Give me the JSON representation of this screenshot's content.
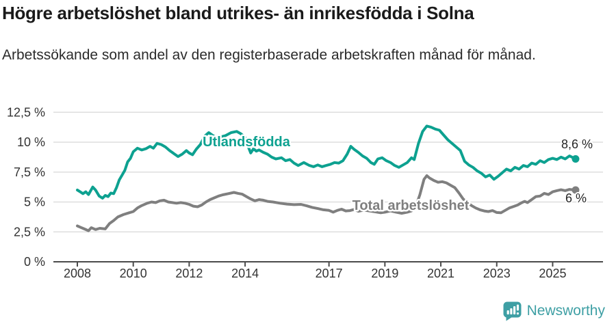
{
  "header": {
    "title": "Högre arbetslöshet bland utrikes- än inrikesfödda i Solna",
    "subtitle": "Arbetssökande som andel av den registerbaserade arbetskraften månad för månad."
  },
  "footer": {
    "brand": "Newsworthy",
    "logo_icon": "bar-chart-speech-bubble-icon"
  },
  "colors": {
    "teal_line": "#0da190",
    "gray_line": "#7f7f7f",
    "title_text": "#1a1a1a",
    "subtitle_text": "#2b2b2b",
    "axis_text": "#333333",
    "value_label_text": "#262626",
    "gridline": "#dedede",
    "axis_line": "#4a4a4a",
    "brand_teal": "#3e9fa4"
  },
  "chart_data": {
    "type": "line",
    "title": "Högre arbetslöshet bland utrikes- än inrikesfödda i Solna",
    "subtitle": "Arbetssökande som andel av den registerbaserade arbetskraften månad för månad.",
    "grid": "horizontal",
    "legend_position": "inline-labels",
    "x_axis": {
      "ticks": [
        2008,
        2010,
        2012,
        2014,
        2017,
        2019,
        2021,
        2023,
        2025
      ]
    },
    "y_axis": {
      "range": [
        0,
        12.5
      ],
      "ticks": [
        {
          "v": 0,
          "label": "0 %"
        },
        {
          "v": 2.5,
          "label": "2,5 %"
        },
        {
          "v": 5,
          "label": "5 %"
        },
        {
          "v": 7.5,
          "label": "7,5 %"
        },
        {
          "v": 10,
          "label": "10 %"
        },
        {
          "v": 12.5,
          "label": "12,5 %"
        }
      ]
    },
    "series": [
      {
        "name": "Utlandsfödda",
        "color": "#0da190",
        "end_label": "8,6 %",
        "points": [
          [
            2008.0,
            6.0
          ],
          [
            2008.1,
            5.85
          ],
          [
            2008.2,
            5.7
          ],
          [
            2008.3,
            5.85
          ],
          [
            2008.4,
            5.62
          ],
          [
            2008.55,
            6.25
          ],
          [
            2008.65,
            6.0
          ],
          [
            2008.78,
            5.5
          ],
          [
            2008.9,
            5.32
          ],
          [
            2009.0,
            5.55
          ],
          [
            2009.1,
            5.45
          ],
          [
            2009.2,
            5.75
          ],
          [
            2009.3,
            5.7
          ],
          [
            2009.4,
            6.2
          ],
          [
            2009.5,
            6.85
          ],
          [
            2009.6,
            7.25
          ],
          [
            2009.7,
            7.65
          ],
          [
            2009.8,
            8.35
          ],
          [
            2009.9,
            8.65
          ],
          [
            2010.0,
            9.2
          ],
          [
            2010.15,
            9.5
          ],
          [
            2010.3,
            9.35
          ],
          [
            2010.45,
            9.45
          ],
          [
            2010.6,
            9.65
          ],
          [
            2010.72,
            9.5
          ],
          [
            2010.85,
            9.9
          ],
          [
            2011.0,
            9.8
          ],
          [
            2011.15,
            9.6
          ],
          [
            2011.3,
            9.3
          ],
          [
            2011.45,
            9.05
          ],
          [
            2011.6,
            8.8
          ],
          [
            2011.75,
            9.0
          ],
          [
            2011.9,
            9.3
          ],
          [
            2012.0,
            9.1
          ],
          [
            2012.12,
            8.95
          ],
          [
            2012.25,
            9.4
          ],
          [
            2012.4,
            9.8
          ],
          [
            2012.55,
            10.5
          ],
          [
            2012.7,
            10.8
          ],
          [
            2012.85,
            10.55
          ],
          [
            2013.0,
            10.35
          ],
          [
            2013.15,
            10.45
          ],
          [
            2013.3,
            10.55
          ],
          [
            2013.5,
            10.8
          ],
          [
            2013.7,
            10.9
          ],
          [
            2013.85,
            10.7
          ],
          [
            2014.0,
            10.4
          ],
          [
            2014.1,
            9.7
          ],
          [
            2014.2,
            9.1
          ],
          [
            2014.3,
            9.45
          ],
          [
            2014.4,
            9.25
          ],
          [
            2014.5,
            9.35
          ],
          [
            2014.65,
            9.15
          ],
          [
            2014.8,
            9.0
          ],
          [
            2014.95,
            8.75
          ],
          [
            2015.1,
            8.6
          ],
          [
            2015.3,
            8.7
          ],
          [
            2015.45,
            8.45
          ],
          [
            2015.6,
            8.55
          ],
          [
            2015.75,
            8.25
          ],
          [
            2015.9,
            8.05
          ],
          [
            2016.1,
            8.3
          ],
          [
            2016.3,
            8.05
          ],
          [
            2016.45,
            7.95
          ],
          [
            2016.6,
            8.1
          ],
          [
            2016.75,
            7.95
          ],
          [
            2016.9,
            8.05
          ],
          [
            2017.05,
            8.15
          ],
          [
            2017.2,
            8.3
          ],
          [
            2017.35,
            8.25
          ],
          [
            2017.5,
            8.45
          ],
          [
            2017.65,
            9.0
          ],
          [
            2017.78,
            9.65
          ],
          [
            2017.9,
            9.4
          ],
          [
            2018.05,
            9.15
          ],
          [
            2018.2,
            8.85
          ],
          [
            2018.35,
            8.65
          ],
          [
            2018.5,
            8.3
          ],
          [
            2018.62,
            8.15
          ],
          [
            2018.75,
            8.6
          ],
          [
            2018.9,
            8.7
          ],
          [
            2019.05,
            8.45
          ],
          [
            2019.2,
            8.3
          ],
          [
            2019.35,
            8.05
          ],
          [
            2019.5,
            7.9
          ],
          [
            2019.65,
            8.1
          ],
          [
            2019.8,
            8.3
          ],
          [
            2019.95,
            8.7
          ],
          [
            2020.05,
            8.55
          ],
          [
            2020.2,
            9.9
          ],
          [
            2020.35,
            10.9
          ],
          [
            2020.5,
            11.35
          ],
          [
            2020.65,
            11.25
          ],
          [
            2020.8,
            11.1
          ],
          [
            2020.95,
            11.0
          ],
          [
            2021.1,
            10.6
          ],
          [
            2021.25,
            10.2
          ],
          [
            2021.4,
            9.9
          ],
          [
            2021.55,
            9.6
          ],
          [
            2021.7,
            9.3
          ],
          [
            2021.85,
            8.4
          ],
          [
            2022.0,
            8.1
          ],
          [
            2022.15,
            7.9
          ],
          [
            2022.3,
            7.6
          ],
          [
            2022.45,
            7.4
          ],
          [
            2022.6,
            7.1
          ],
          [
            2022.75,
            7.25
          ],
          [
            2022.9,
            6.9
          ],
          [
            2023.05,
            7.15
          ],
          [
            2023.2,
            7.45
          ],
          [
            2023.35,
            7.75
          ],
          [
            2023.5,
            7.6
          ],
          [
            2023.65,
            7.9
          ],
          [
            2023.8,
            7.75
          ],
          [
            2023.95,
            8.05
          ],
          [
            2024.1,
            7.95
          ],
          [
            2024.25,
            8.25
          ],
          [
            2024.4,
            8.15
          ],
          [
            2024.55,
            8.45
          ],
          [
            2024.7,
            8.3
          ],
          [
            2024.85,
            8.55
          ],
          [
            2025.0,
            8.65
          ],
          [
            2025.15,
            8.55
          ],
          [
            2025.3,
            8.75
          ],
          [
            2025.45,
            8.6
          ],
          [
            2025.6,
            8.85
          ],
          [
            2025.82,
            8.6
          ]
        ]
      },
      {
        "name": "Total arbetslöshet",
        "color": "#7f7f7f",
        "end_label": "6 %",
        "points": [
          [
            2008.0,
            3.0
          ],
          [
            2008.1,
            2.9
          ],
          [
            2008.25,
            2.75
          ],
          [
            2008.4,
            2.6
          ],
          [
            2008.5,
            2.85
          ],
          [
            2008.65,
            2.7
          ],
          [
            2008.8,
            2.8
          ],
          [
            2009.0,
            2.75
          ],
          [
            2009.15,
            3.2
          ],
          [
            2009.3,
            3.45
          ],
          [
            2009.45,
            3.75
          ],
          [
            2009.65,
            3.95
          ],
          [
            2009.85,
            4.1
          ],
          [
            2010.0,
            4.2
          ],
          [
            2010.15,
            4.5
          ],
          [
            2010.3,
            4.7
          ],
          [
            2010.5,
            4.9
          ],
          [
            2010.65,
            5.0
          ],
          [
            2010.8,
            4.95
          ],
          [
            2010.95,
            5.1
          ],
          [
            2011.1,
            5.15
          ],
          [
            2011.25,
            5.0
          ],
          [
            2011.4,
            4.95
          ],
          [
            2011.55,
            4.9
          ],
          [
            2011.7,
            4.95
          ],
          [
            2011.85,
            4.9
          ],
          [
            2012.0,
            4.8
          ],
          [
            2012.15,
            4.65
          ],
          [
            2012.3,
            4.6
          ],
          [
            2012.45,
            4.75
          ],
          [
            2012.6,
            5.0
          ],
          [
            2012.75,
            5.2
          ],
          [
            2012.9,
            5.35
          ],
          [
            2013.05,
            5.5
          ],
          [
            2013.2,
            5.6
          ],
          [
            2013.4,
            5.7
          ],
          [
            2013.6,
            5.8
          ],
          [
            2013.75,
            5.72
          ],
          [
            2013.9,
            5.65
          ],
          [
            2014.05,
            5.45
          ],
          [
            2014.2,
            5.25
          ],
          [
            2014.35,
            5.1
          ],
          [
            2014.5,
            5.2
          ],
          [
            2014.65,
            5.15
          ],
          [
            2014.8,
            5.05
          ],
          [
            2015.0,
            5.0
          ],
          [
            2015.25,
            4.9
          ],
          [
            2015.5,
            4.82
          ],
          [
            2015.75,
            4.78
          ],
          [
            2016.0,
            4.8
          ],
          [
            2016.2,
            4.68
          ],
          [
            2016.4,
            4.55
          ],
          [
            2016.6,
            4.45
          ],
          [
            2016.8,
            4.35
          ],
          [
            2017.0,
            4.3
          ],
          [
            2017.15,
            4.15
          ],
          [
            2017.3,
            4.3
          ],
          [
            2017.45,
            4.4
          ],
          [
            2017.6,
            4.25
          ],
          [
            2017.75,
            4.28
          ],
          [
            2017.9,
            4.38
          ],
          [
            2018.05,
            4.22
          ],
          [
            2018.25,
            4.32
          ],
          [
            2018.45,
            4.25
          ],
          [
            2018.65,
            4.18
          ],
          [
            2018.85,
            4.1
          ],
          [
            2019.0,
            4.15
          ],
          [
            2019.2,
            4.25
          ],
          [
            2019.4,
            4.15
          ],
          [
            2019.6,
            4.05
          ],
          [
            2019.8,
            4.15
          ],
          [
            2019.95,
            4.25
          ],
          [
            2020.1,
            4.6
          ],
          [
            2020.25,
            5.6
          ],
          [
            2020.4,
            6.9
          ],
          [
            2020.5,
            7.2
          ],
          [
            2020.6,
            7.0
          ],
          [
            2020.75,
            6.8
          ],
          [
            2020.9,
            6.65
          ],
          [
            2021.05,
            6.7
          ],
          [
            2021.2,
            6.6
          ],
          [
            2021.35,
            6.4
          ],
          [
            2021.5,
            6.2
          ],
          [
            2021.65,
            5.75
          ],
          [
            2021.8,
            5.25
          ],
          [
            2021.95,
            4.95
          ],
          [
            2022.1,
            4.7
          ],
          [
            2022.25,
            4.5
          ],
          [
            2022.4,
            4.35
          ],
          [
            2022.55,
            4.25
          ],
          [
            2022.7,
            4.2
          ],
          [
            2022.85,
            4.28
          ],
          [
            2023.0,
            4.12
          ],
          [
            2023.15,
            4.1
          ],
          [
            2023.3,
            4.3
          ],
          [
            2023.45,
            4.5
          ],
          [
            2023.6,
            4.62
          ],
          [
            2023.75,
            4.75
          ],
          [
            2023.9,
            4.95
          ],
          [
            2024.0,
            5.05
          ],
          [
            2024.1,
            4.95
          ],
          [
            2024.25,
            5.2
          ],
          [
            2024.4,
            5.45
          ],
          [
            2024.55,
            5.5
          ],
          [
            2024.7,
            5.72
          ],
          [
            2024.85,
            5.62
          ],
          [
            2025.0,
            5.85
          ],
          [
            2025.15,
            5.95
          ],
          [
            2025.3,
            6.02
          ],
          [
            2025.45,
            5.95
          ],
          [
            2025.6,
            6.05
          ],
          [
            2025.82,
            6.0
          ]
        ]
      }
    ]
  }
}
